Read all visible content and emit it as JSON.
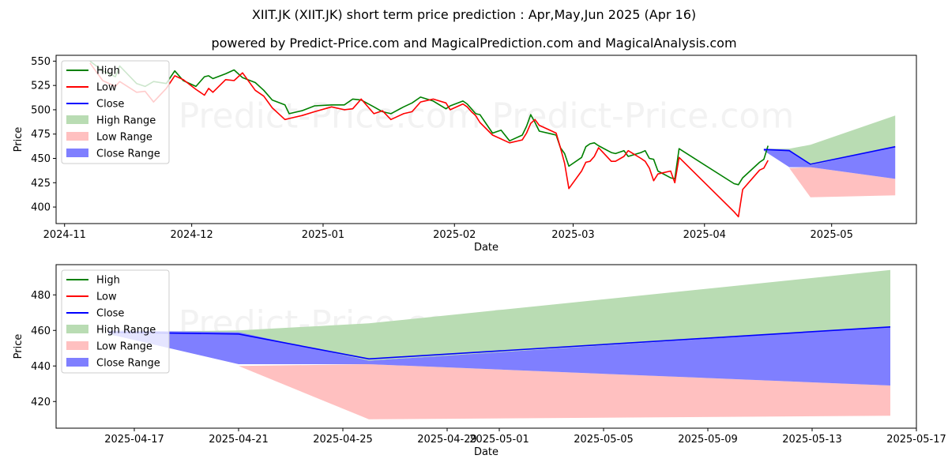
{
  "title": "XIIT.JK (XIIT.JK) short term price prediction : Apr,May,Jun 2025 (Apr 16)",
  "subtitle": "powered by Predict-Price.com and MagicalPrediction.com and MagicalAnalysis.com",
  "watermark": "Predict-Price.com",
  "colors": {
    "high": "#008000",
    "low": "#ff0000",
    "close": "#0000ff",
    "high_range": "#b9dcb3",
    "low_range": "#ffc0c0",
    "close_range": "#7f7fff"
  },
  "chart_data": [
    {
      "type": "line",
      "xlabel": "Date",
      "ylabel": "Price",
      "x_ticks": [
        "2024-11",
        "2024-12",
        "2025-01",
        "2025-02",
        "2025-03",
        "2025-04",
        "2025-05"
      ],
      "y_ticks": [
        400,
        425,
        450,
        475,
        500,
        525,
        550
      ],
      "ylim": [
        383,
        556
      ],
      "xlim": [
        "2024-10-30",
        "2025-05-21"
      ],
      "legend": [
        "High",
        "Low",
        "Close",
        "High Range",
        "Low Range",
        "Close Range"
      ],
      "legend_position": "upper left",
      "series": [
        {
          "name": "High",
          "x": [
            "2024-11-07",
            "2024-11-10",
            "2024-11-13",
            "2024-11-14",
            "2024-11-18",
            "2024-11-20",
            "2024-11-22",
            "2024-11-25",
            "2024-11-27",
            "2024-11-29",
            "2024-12-02",
            "2024-12-04",
            "2024-12-05",
            "2024-12-06",
            "2024-12-09",
            "2024-12-11",
            "2024-12-13",
            "2024-12-16",
            "2024-12-18",
            "2024-12-20",
            "2024-12-23",
            "2024-12-24",
            "2024-12-27",
            "2024-12-30",
            "2025-01-03",
            "2025-01-06",
            "2025-01-08",
            "2025-01-10",
            "2025-01-13",
            "2025-01-15",
            "2025-01-17",
            "2025-01-20",
            "2025-01-22",
            "2025-01-24",
            "2025-01-27",
            "2025-01-30",
            "2025-01-31",
            "2025-02-03",
            "2025-02-04",
            "2025-02-05",
            "2025-02-06",
            "2025-02-07",
            "2025-02-10",
            "2025-02-12",
            "2025-02-14",
            "2025-02-17",
            "2025-02-18",
            "2025-02-19",
            "2025-02-20",
            "2025-02-21",
            "2025-02-24",
            "2025-02-25",
            "2025-02-26",
            "2025-02-27",
            "2025-02-28",
            "2025-03-03",
            "2025-03-04",
            "2025-03-05",
            "2025-03-06",
            "2025-03-07",
            "2025-03-10",
            "2025-03-11",
            "2025-03-13",
            "2025-03-14",
            "2025-03-17",
            "2025-03-18",
            "2025-03-19",
            "2025-03-20",
            "2025-03-21",
            "2025-03-24",
            "2025-03-25",
            "2025-03-26",
            "2025-04-08",
            "2025-04-09",
            "2025-04-10",
            "2025-04-14",
            "2025-04-15",
            "2025-04-16"
          ],
          "values": [
            550,
            540,
            534,
            545,
            527,
            524,
            529,
            527,
            540,
            530,
            524,
            534,
            535,
            532,
            537,
            541,
            533,
            528,
            520,
            510,
            505,
            496,
            499,
            504,
            505,
            505,
            511,
            510,
            503,
            498,
            496,
            503,
            507,
            513,
            509,
            501,
            504,
            509,
            506,
            501,
            496,
            495,
            476,
            479,
            468,
            474,
            483,
            495,
            487,
            478,
            475,
            474,
            461,
            455,
            442,
            451,
            462,
            465,
            466,
            463,
            456,
            455,
            458,
            452,
            456,
            458,
            450,
            449,
            437,
            430,
            429,
            460,
            424,
            423,
            430,
            446,
            449,
            463
          ]
        },
        {
          "name": "Low",
          "x": [
            "2024-11-07",
            "2024-11-10",
            "2024-11-13",
            "2024-11-14",
            "2024-11-18",
            "2024-11-20",
            "2024-11-22",
            "2024-11-25",
            "2024-11-27",
            "2024-11-29",
            "2024-12-02",
            "2024-12-04",
            "2024-12-05",
            "2024-12-06",
            "2024-12-09",
            "2024-12-11",
            "2024-12-13",
            "2024-12-16",
            "2024-12-18",
            "2024-12-20",
            "2024-12-23",
            "2024-12-24",
            "2024-12-27",
            "2024-12-30",
            "2025-01-03",
            "2025-01-06",
            "2025-01-08",
            "2025-01-10",
            "2025-01-13",
            "2025-01-15",
            "2025-01-17",
            "2025-01-20",
            "2025-01-22",
            "2025-01-24",
            "2025-01-27",
            "2025-01-30",
            "2025-01-31",
            "2025-02-03",
            "2025-02-04",
            "2025-02-05",
            "2025-02-06",
            "2025-02-07",
            "2025-02-10",
            "2025-02-12",
            "2025-02-14",
            "2025-02-17",
            "2025-02-18",
            "2025-02-19",
            "2025-02-20",
            "2025-02-21",
            "2025-02-24",
            "2025-02-25",
            "2025-02-26",
            "2025-02-27",
            "2025-02-28",
            "2025-03-03",
            "2025-03-04",
            "2025-03-05",
            "2025-03-06",
            "2025-03-07",
            "2025-03-10",
            "2025-03-11",
            "2025-03-13",
            "2025-03-14",
            "2025-03-17",
            "2025-03-18",
            "2025-03-19",
            "2025-03-20",
            "2025-03-21",
            "2025-03-24",
            "2025-03-25",
            "2025-03-26",
            "2025-04-08",
            "2025-04-09",
            "2025-04-10",
            "2025-04-14",
            "2025-04-15",
            "2025-04-16"
          ],
          "values": [
            548,
            530,
            524,
            529,
            518,
            519,
            508,
            522,
            535,
            531,
            521,
            515,
            522,
            518,
            531,
            530,
            538,
            520,
            514,
            502,
            490,
            491,
            494,
            498,
            503,
            500,
            501,
            511,
            496,
            499,
            490,
            496,
            498,
            508,
            511,
            507,
            500,
            506,
            503,
            498,
            494,
            487,
            474,
            470,
            466,
            469,
            476,
            486,
            490,
            484,
            478,
            476,
            461,
            445,
            419,
            437,
            446,
            447,
            452,
            461,
            447,
            447,
            452,
            458,
            450,
            447,
            440,
            427,
            434,
            437,
            425,
            451,
            395,
            390,
            418,
            438,
            440,
            448
          ]
        },
        {
          "name": "Close",
          "x": [
            "2025-04-15",
            "2025-04-16",
            "2025-04-21",
            "2025-04-26",
            "2025-05-16"
          ],
          "values": [
            459,
            459,
            458,
            444,
            462
          ]
        }
      ],
      "ranges": [
        {
          "name": "High Range",
          "x": [
            "2025-04-15",
            "2025-04-21",
            "2025-04-26",
            "2025-05-16"
          ],
          "upper": [
            460,
            460,
            464,
            494
          ],
          "lower": [
            458,
            457,
            443,
            462
          ]
        },
        {
          "name": "Low Range",
          "x": [
            "2025-04-15",
            "2025-04-21",
            "2025-04-26",
            "2025-05-16"
          ],
          "upper": [
            458,
            440,
            441,
            429
          ],
          "lower": [
            458,
            440,
            410,
            412
          ]
        },
        {
          "name": "Close Range",
          "x": [
            "2025-04-15",
            "2025-04-21",
            "2025-04-26",
            "2025-05-16"
          ],
          "upper": [
            460,
            459,
            443,
            462
          ],
          "lower": [
            458,
            441,
            441,
            429
          ]
        }
      ]
    },
    {
      "type": "line",
      "xlabel": "Date",
      "ylabel": "Price",
      "x_ticks": [
        "2025-04-17",
        "2025-04-21",
        "2025-04-25",
        "2025-04-29",
        "2025-05-01",
        "2025-05-05",
        "2025-05-09",
        "2025-05-13",
        "2025-05-17"
      ],
      "y_ticks": [
        420,
        440,
        460,
        480
      ],
      "ylim": [
        405,
        497
      ],
      "xlim": [
        "2025-04-14",
        "2025-05-17"
      ],
      "legend": [
        "High",
        "Low",
        "Close",
        "High Range",
        "Low Range",
        "Close Range"
      ],
      "legend_position": "upper left",
      "series": [
        {
          "name": "Close",
          "x": [
            "2025-04-16",
            "2025-04-21",
            "2025-04-26",
            "2025-05-16"
          ],
          "values": [
            459,
            458,
            444,
            462
          ]
        }
      ],
      "ranges": [
        {
          "name": "High Range",
          "x": [
            "2025-04-16",
            "2025-04-21",
            "2025-04-26",
            "2025-05-16"
          ],
          "upper": [
            459,
            460,
            464,
            494
          ],
          "lower": [
            457,
            457,
            443,
            462
          ]
        },
        {
          "name": "Low Range",
          "x": [
            "2025-04-16",
            "2025-04-21",
            "2025-04-26",
            "2025-05-16"
          ],
          "upper": [
            457,
            440,
            441,
            429
          ],
          "lower": [
            457,
            440,
            410,
            412
          ]
        },
        {
          "name": "Close Range",
          "x": [
            "2025-04-16",
            "2025-04-21",
            "2025-04-26",
            "2025-05-16"
          ],
          "upper": [
            460,
            459,
            443,
            462
          ],
          "lower": [
            458,
            441,
            441,
            429
          ]
        }
      ]
    }
  ]
}
